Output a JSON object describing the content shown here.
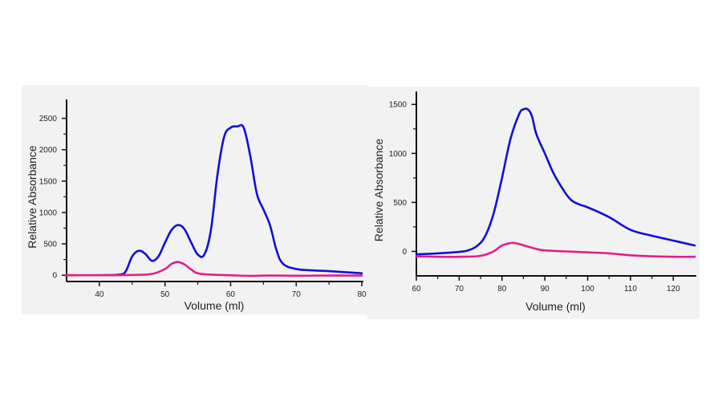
{
  "chart_data": [
    {
      "type": "line",
      "title": "",
      "xlabel": "Volume (ml)",
      "ylabel": "Relative Absorbance",
      "xlim": [
        35,
        80
      ],
      "ylim": [
        -100,
        2750
      ],
      "x_ticks": [
        40,
        50,
        60,
        70,
        80
      ],
      "y_ticks": [
        0,
        500,
        1000,
        1500,
        2000,
        2500
      ],
      "x_tick_labels": [
        "40",
        "50",
        "60",
        "70",
        "80"
      ],
      "y_tick_labels": [
        "0",
        "500",
        "1000",
        "1500",
        "2000",
        "2500"
      ],
      "grid": false,
      "series": [
        {
          "color": "#1010d8",
          "x": [
            35,
            40,
            43,
            44,
            45,
            46,
            47,
            48,
            49,
            50,
            51,
            52,
            53,
            54,
            55,
            56,
            57,
            58,
            59,
            60,
            61,
            62,
            63,
            64,
            65,
            66,
            67,
            68,
            70,
            72,
            75,
            78,
            80
          ],
          "y": [
            0,
            0,
            10,
            60,
            300,
            390,
            340,
            230,
            300,
            520,
            720,
            800,
            730,
            520,
            330,
            330,
            720,
            1600,
            2200,
            2350,
            2370,
            2350,
            1900,
            1300,
            1050,
            800,
            400,
            180,
            100,
            80,
            65,
            45,
            30
          ]
        },
        {
          "color": "#e0208a",
          "x": [
            35,
            40,
            45,
            48,
            50,
            51,
            52,
            53,
            54,
            55,
            57,
            60,
            63,
            66,
            70,
            75,
            80
          ],
          "y": [
            0,
            0,
            5,
            20,
            100,
            180,
            210,
            170,
            90,
            30,
            10,
            0,
            -10,
            -5,
            -8,
            -5,
            -5
          ]
        }
      ]
    },
    {
      "type": "line",
      "title": "",
      "xlabel": "Volume (ml)",
      "ylabel": "Relative Absorbance",
      "xlim": [
        60,
        125
      ],
      "ylim": [
        -250,
        1600
      ],
      "x_ticks": [
        60,
        70,
        80,
        90,
        100,
        110,
        120
      ],
      "y_ticks": [
        0,
        500,
        1000,
        1500
      ],
      "x_tick_labels": [
        "60",
        "70",
        "80",
        "90",
        "100",
        "110",
        "120"
      ],
      "y_tick_labels": [
        "0",
        "500",
        "1000",
        "1500"
      ],
      "grid": false,
      "series": [
        {
          "color": "#1010d8",
          "x": [
            60,
            65,
            70,
            72,
            74,
            76,
            78,
            80,
            82,
            84,
            85,
            86,
            87,
            88,
            90,
            92,
            94,
            96,
            98,
            100,
            105,
            110,
            115,
            120,
            125
          ],
          "y": [
            -30,
            -20,
            -5,
            10,
            50,
            150,
            380,
            750,
            1150,
            1400,
            1450,
            1450,
            1380,
            1200,
            1000,
            800,
            650,
            530,
            480,
            450,
            350,
            220,
            160,
            110,
            60
          ]
        },
        {
          "color": "#e0208a",
          "x": [
            60,
            65,
            70,
            75,
            78,
            80,
            82,
            83,
            84,
            86,
            88,
            90,
            95,
            100,
            105,
            110,
            115,
            120,
            125
          ],
          "y": [
            -50,
            -55,
            -55,
            -45,
            0,
            60,
            85,
            85,
            75,
            50,
            25,
            10,
            0,
            -10,
            -20,
            -40,
            -50,
            -55,
            -55
          ]
        }
      ]
    }
  ]
}
